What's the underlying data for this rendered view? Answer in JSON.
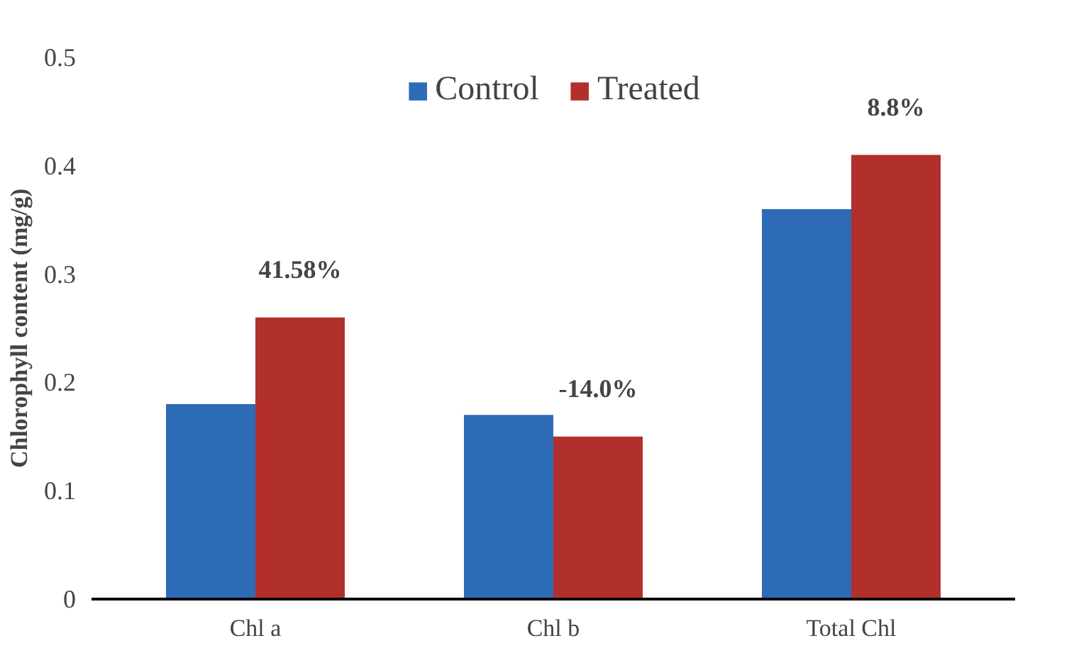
{
  "chart_data": {
    "type": "bar",
    "ylabel": "Chlorophyll content (mg/g)",
    "categories": [
      "Chl a",
      "Chl b",
      "Total Chl"
    ],
    "series": [
      {
        "name": "Control",
        "color": "#2e6bb6",
        "values": [
          0.18,
          0.17,
          0.36
        ]
      },
      {
        "name": "Treated",
        "color": "#b2302c",
        "values": [
          0.26,
          0.15,
          0.41
        ]
      }
    ],
    "ylim": [
      0,
      0.5
    ],
    "yticks": [
      0,
      {
        "value": 0.1,
        "label": "0.1"
      },
      {
        "value": 0.2,
        "label": "0.2"
      },
      {
        "value": 0.3,
        "label": "0.3"
      },
      {
        "value": 0.4,
        "label": "0.4"
      },
      {
        "value": 0.5,
        "label": "0.5"
      }
    ],
    "grid": false,
    "legend": "top",
    "annotations": [
      {
        "text": "41.58%",
        "x": "Chl a",
        "y": 0.26
      },
      {
        "text": "-14.0%",
        "x": "Chl b",
        "y": 0.15
      },
      {
        "text": "8.8%",
        "x": "Total Chl",
        "y": 0.41
      }
    ]
  }
}
